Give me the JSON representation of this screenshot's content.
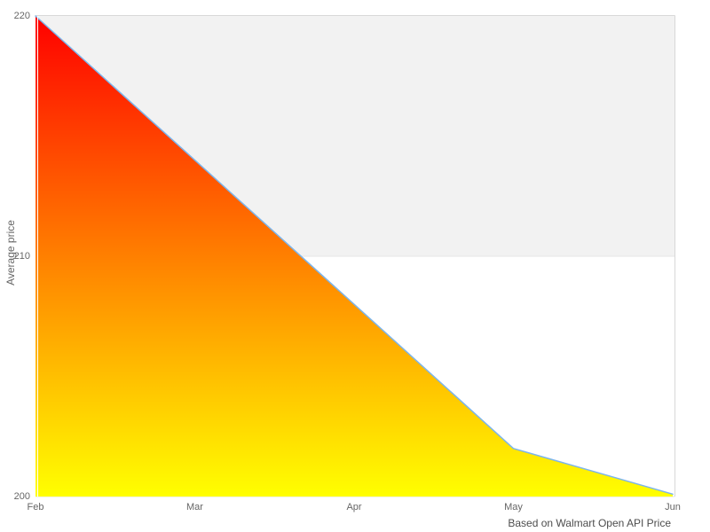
{
  "chart_data": {
    "type": "area",
    "categories": [
      "Feb",
      "Mar",
      "Apr",
      "May",
      "Jun"
    ],
    "values": [
      220,
      214,
      208,
      202,
      200.1
    ],
    "title": "",
    "xlabel": "",
    "ylabel": "Average price",
    "ylim": [
      200,
      220
    ],
    "yticks": [
      200,
      210,
      220
    ],
    "caption": "Based on Walmart Open API Price",
    "legend": "none",
    "grid": "horizontal",
    "band_between": [
      210,
      220
    ],
    "colors": {
      "line": "#7cb5ec",
      "area_gradient_top": "#ff0000",
      "area_gradient_bottom": "#ffff00",
      "alternate_band": "#f2f2f2",
      "gridline": "#e6e6e6",
      "plot_border": "#d8d8d8",
      "axis_overlay_line": "#ffffff",
      "tick_label": "#666666",
      "caption_text": "#4d4d4d"
    }
  }
}
